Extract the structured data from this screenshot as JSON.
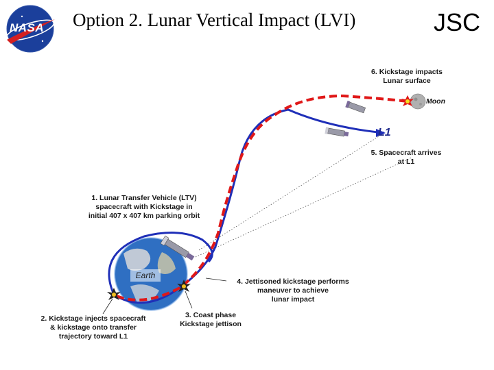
{
  "title": "Option 2.  Lunar Vertical Impact (LVI)",
  "org": "JSC",
  "logo": {
    "text": "NASA",
    "icon": "nasa-meatball-logo"
  },
  "labels": {
    "moon": "Moon",
    "l1": "L1",
    "earth": "Earth"
  },
  "steps": {
    "step1": [
      "1.  Lunar Transfer Vehicle (LTV)",
      "spacecraft with Kickstage in",
      "initial 407 x 407 km parking orbit"
    ],
    "step2": [
      "2. Kickstage injects spacecraft",
      "& kickstage onto transfer",
      "trajectory toward L1"
    ],
    "step3": [
      "3.  Coast phase",
      "Kickstage jettison"
    ],
    "step4": [
      "4. Jettisoned kickstage performs",
      "maneuver to achieve",
      "lunar impact"
    ],
    "step5": [
      "5.  Spacecraft arrives",
      "at L1"
    ],
    "step6": [
      "6.  Kickstage impacts",
      "Lunar surface"
    ]
  },
  "colors": {
    "spacecraft_path": "#1f2fb8",
    "kickstage_path": "#e01818",
    "earth_ocean": "#2f6fc2",
    "moon": "#b0b0b0"
  }
}
